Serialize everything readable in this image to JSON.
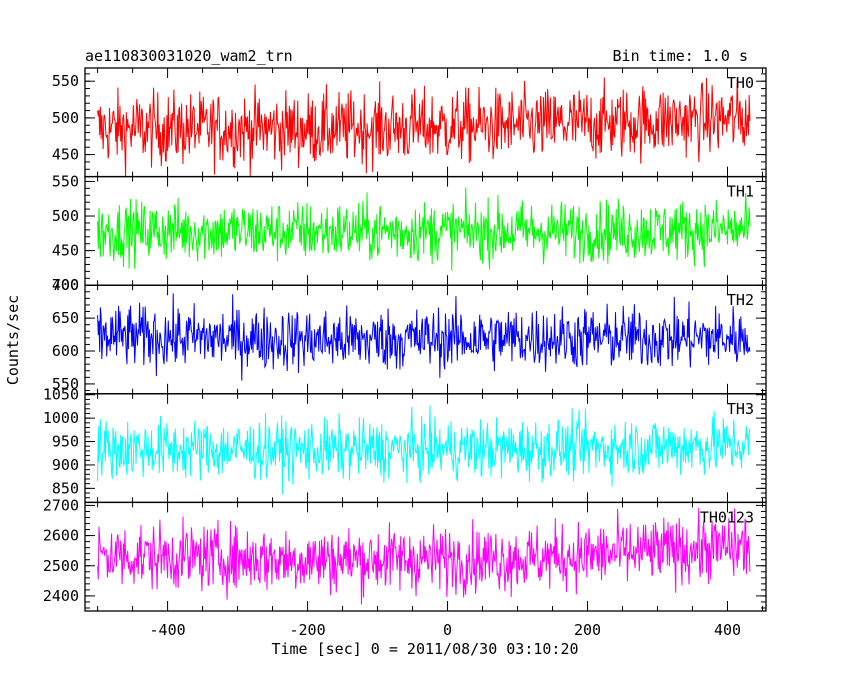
{
  "header": {
    "title": "ae110830031020_wam2_trn",
    "bin_time": "Bin time: 1.0 s"
  },
  "chart_data": {
    "type": "line",
    "xlabel": "Time [sec] 0 = 2011/08/30 03:10:20",
    "ylabel": "Counts/sec",
    "xlim": [
      -518,
      455
    ],
    "xticks": [
      -400,
      -200,
      0,
      200,
      400
    ],
    "x_start": -500,
    "x_end": 432,
    "x_step": 1.0,
    "panels": [
      {
        "name": "TH0",
        "color": "#ff0000",
        "ylim": [
          420,
          568
        ],
        "yticks": [
          450,
          500,
          550
        ],
        "mean": 485,
        "noise": 25,
        "trend": [
          0,
          0,
          5,
          15
        ]
      },
      {
        "name": "TH1",
        "color": "#00ff00",
        "ylim": [
          400,
          557
        ],
        "yticks": [
          400,
          450,
          500,
          550
        ],
        "mean": 478,
        "noise": 22,
        "trend": [
          0,
          0,
          0,
          2
        ]
      },
      {
        "name": "TH2",
        "color": "#0000ff",
        "ylim": [
          535,
          700
        ],
        "yticks": [
          550,
          600,
          650,
          700
        ],
        "mean": 620,
        "noise": 24,
        "trend": [
          3,
          -3,
          0,
          0
        ]
      },
      {
        "name": "TH3",
        "color": "#00ffff",
        "ylim": [
          820,
          1052
        ],
        "yticks": [
          850,
          900,
          950,
          1000,
          1050
        ],
        "mean": 935,
        "noise": 32,
        "trend": [
          0,
          -3,
          0,
          8
        ]
      },
      {
        "name": "TH0123",
        "color": "#ff00ff",
        "ylim": [
          2350,
          2710
        ],
        "yticks": [
          2400,
          2500,
          2600,
          2700
        ],
        "mean": 2525,
        "noise": 55,
        "trend": [
          10,
          -5,
          0,
          40
        ]
      }
    ]
  }
}
